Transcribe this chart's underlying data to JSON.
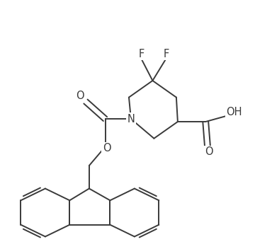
{
  "background_color": "#ffffff",
  "line_color": "#3a3a3a",
  "line_width": 1.4,
  "figsize": [
    3.6,
    3.52
  ],
  "dpi": 100,
  "xlim": [
    0,
    360
  ],
  "ylim": [
    0,
    352
  ]
}
